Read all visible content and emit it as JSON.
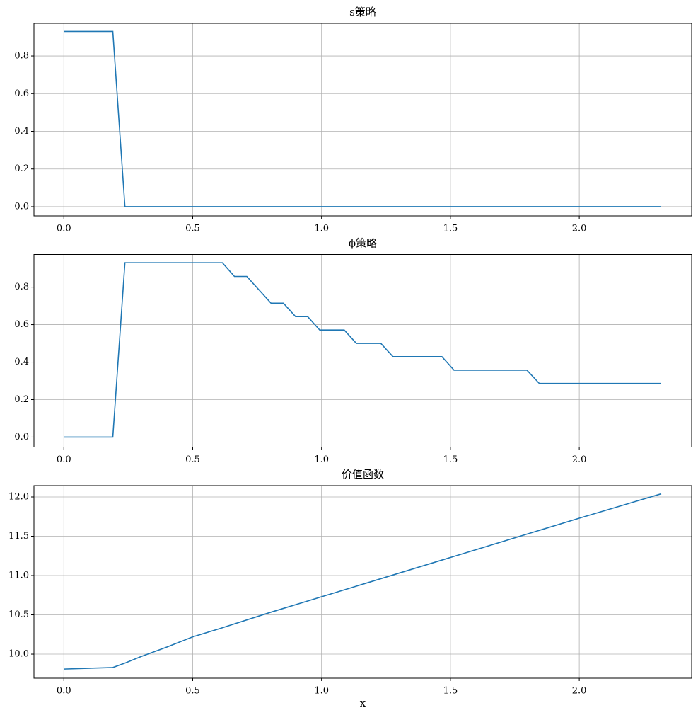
{
  "chart_data": [
    {
      "type": "line",
      "title": "s策略",
      "color": "#1f77b4",
      "grid": true,
      "x": [
        0,
        0.19,
        0.237,
        2.318
      ],
      "values": [
        0.93,
        0.93,
        0,
        0
      ],
      "xlim": [
        -0.116,
        2.436
      ],
      "ylim": [
        -0.049,
        0.973
      ],
      "xticks": [
        {
          "value": 0,
          "label": "0.0"
        },
        0.5,
        {
          "value": 1,
          "label": "1.0"
        },
        1.5,
        {
          "value": 2,
          "label": "2.0"
        }
      ],
      "yticks": [
        {
          "value": 0,
          "label": "0.0"
        },
        0.2,
        0.4,
        0.6,
        0.8
      ]
    },
    {
      "type": "line",
      "title": "ϕ策略",
      "color": "#1f77b4",
      "grid": true,
      "x": [
        0,
        0.19,
        0.237,
        0.615,
        0.662,
        0.71,
        0.804,
        0.852,
        0.899,
        0.946,
        0.993,
        1.088,
        1.135,
        1.23,
        1.277,
        1.467,
        1.514,
        1.797,
        1.845,
        2.318
      ],
      "values": [
        0,
        0,
        0.93,
        0.93,
        0.857,
        0.857,
        0.714,
        0.714,
        0.643,
        0.643,
        0.571,
        0.571,
        0.5,
        0.5,
        0.429,
        0.429,
        0.357,
        0.357,
        0.286,
        0.286
      ],
      "xlim": [
        -0.116,
        2.436
      ],
      "ylim": [
        -0.053,
        0.974
      ],
      "xticks": [
        {
          "value": 0,
          "label": "0.0"
        },
        0.5,
        {
          "value": 1,
          "label": "1.0"
        },
        1.5,
        {
          "value": 2,
          "label": "2.0"
        }
      ],
      "yticks": [
        {
          "value": 0,
          "label": "0.0"
        },
        0.2,
        0.4,
        0.6,
        0.8
      ]
    },
    {
      "type": "line",
      "title": "价值函数",
      "xlabel": "x",
      "color": "#1f77b4",
      "grid": true,
      "x": [
        0,
        0.19,
        0.24,
        0.3,
        0.4,
        0.5,
        0.6,
        0.8,
        1.0,
        1.5,
        2.0,
        2.318
      ],
      "values": [
        9.81,
        9.83,
        9.89,
        9.97,
        10.09,
        10.22,
        10.32,
        10.53,
        10.73,
        11.23,
        11.73,
        12.04
      ],
      "xlim": [
        -0.116,
        2.436
      ],
      "ylim": [
        9.694,
        12.144
      ],
      "xticks": [
        {
          "value": 0,
          "label": "0.0"
        },
        0.5,
        {
          "value": 1,
          "label": "1.0"
        },
        1.5,
        {
          "value": 2,
          "label": "2.0"
        }
      ],
      "yticks": [
        {
          "value": 10,
          "label": "10.0"
        },
        10.5,
        {
          "value": 11,
          "label": "11.0"
        },
        11.5,
        {
          "value": 12,
          "label": "12.0"
        }
      ]
    }
  ]
}
